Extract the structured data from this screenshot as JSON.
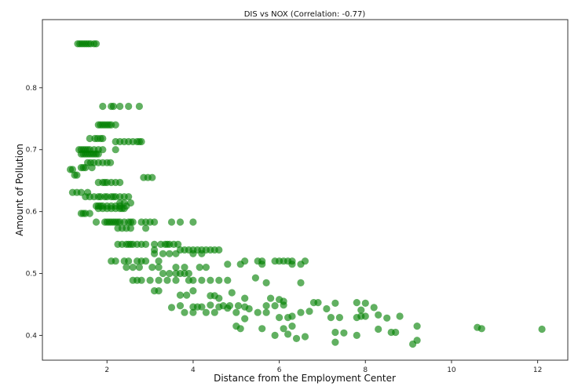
{
  "chart_data": {
    "type": "scatter",
    "title": "DIS vs NOX (Correlation: -0.77)",
    "xlabel": "Distance from the Employment Center",
    "ylabel": "Amount of Pollution",
    "xlim": [
      0.5,
      12.7
    ],
    "ylim": [
      0.36,
      0.91
    ],
    "xticks": [
      2,
      4,
      6,
      8,
      10,
      12
    ],
    "yticks": [
      0.4,
      0.5,
      0.6,
      0.7,
      0.8
    ],
    "grid": false,
    "marker_color": "#008000",
    "marker_alpha": 0.62,
    "points": [
      [
        1.32,
        0.871
      ],
      [
        1.37,
        0.871
      ],
      [
        1.42,
        0.871
      ],
      [
        1.47,
        0.871
      ],
      [
        1.52,
        0.871
      ],
      [
        1.57,
        0.871
      ],
      [
        1.62,
        0.871
      ],
      [
        1.7,
        0.871
      ],
      [
        1.75,
        0.871
      ],
      [
        1.9,
        0.77
      ],
      [
        2.1,
        0.77
      ],
      [
        2.15,
        0.77
      ],
      [
        2.3,
        0.77
      ],
      [
        2.5,
        0.77
      ],
      [
        2.75,
        0.77
      ],
      [
        1.8,
        0.74
      ],
      [
        1.85,
        0.74
      ],
      [
        1.9,
        0.74
      ],
      [
        1.95,
        0.74
      ],
      [
        2.0,
        0.74
      ],
      [
        2.05,
        0.74
      ],
      [
        2.1,
        0.74
      ],
      [
        2.2,
        0.74
      ],
      [
        1.6,
        0.718
      ],
      [
        1.72,
        0.718
      ],
      [
        1.78,
        0.718
      ],
      [
        1.85,
        0.718
      ],
      [
        1.9,
        0.718
      ],
      [
        2.2,
        0.713
      ],
      [
        2.3,
        0.713
      ],
      [
        2.4,
        0.713
      ],
      [
        2.5,
        0.713
      ],
      [
        2.6,
        0.713
      ],
      [
        2.7,
        0.713
      ],
      [
        2.75,
        0.713
      ],
      [
        2.8,
        0.713
      ],
      [
        1.35,
        0.7
      ],
      [
        1.4,
        0.7
      ],
      [
        1.45,
        0.7
      ],
      [
        1.5,
        0.7
      ],
      [
        1.55,
        0.7
      ],
      [
        1.6,
        0.7
      ],
      [
        1.7,
        0.7
      ],
      [
        1.8,
        0.7
      ],
      [
        1.9,
        0.7
      ],
      [
        2.2,
        0.7
      ],
      [
        1.4,
        0.693
      ],
      [
        1.45,
        0.693
      ],
      [
        1.5,
        0.693
      ],
      [
        1.55,
        0.693
      ],
      [
        1.6,
        0.693
      ],
      [
        1.65,
        0.693
      ],
      [
        1.7,
        0.693
      ],
      [
        1.75,
        0.693
      ],
      [
        1.8,
        0.693
      ],
      [
        1.55,
        0.679
      ],
      [
        1.62,
        0.679
      ],
      [
        1.7,
        0.679
      ],
      [
        1.8,
        0.679
      ],
      [
        1.9,
        0.679
      ],
      [
        2.0,
        0.679
      ],
      [
        2.08,
        0.679
      ],
      [
        1.4,
        0.671
      ],
      [
        1.45,
        0.671
      ],
      [
        1.5,
        0.671
      ],
      [
        1.65,
        0.671
      ],
      [
        1.15,
        0.668
      ],
      [
        1.2,
        0.668
      ],
      [
        1.25,
        0.659
      ],
      [
        1.3,
        0.659
      ],
      [
        2.85,
        0.655
      ],
      [
        2.95,
        0.655
      ],
      [
        3.05,
        0.655
      ],
      [
        1.8,
        0.647
      ],
      [
        1.9,
        0.647
      ],
      [
        1.95,
        0.647
      ],
      [
        2.0,
        0.647
      ],
      [
        2.1,
        0.647
      ],
      [
        2.2,
        0.647
      ],
      [
        2.3,
        0.647
      ],
      [
        1.2,
        0.631
      ],
      [
        1.3,
        0.631
      ],
      [
        1.4,
        0.631
      ],
      [
        1.55,
        0.631
      ],
      [
        1.5,
        0.624
      ],
      [
        1.6,
        0.624
      ],
      [
        1.7,
        0.624
      ],
      [
        1.8,
        0.624
      ],
      [
        1.85,
        0.624
      ],
      [
        1.95,
        0.624
      ],
      [
        2.0,
        0.624
      ],
      [
        2.1,
        0.624
      ],
      [
        2.15,
        0.624
      ],
      [
        2.2,
        0.624
      ],
      [
        2.3,
        0.624
      ],
      [
        2.4,
        0.624
      ],
      [
        2.5,
        0.624
      ],
      [
        2.3,
        0.614
      ],
      [
        2.4,
        0.614
      ],
      [
        2.55,
        0.614
      ],
      [
        1.75,
        0.609
      ],
      [
        1.8,
        0.609
      ],
      [
        1.85,
        0.609
      ],
      [
        1.9,
        0.609
      ],
      [
        2.0,
        0.609
      ],
      [
        2.1,
        0.609
      ],
      [
        2.2,
        0.609
      ],
      [
        2.3,
        0.609
      ],
      [
        2.45,
        0.609
      ],
      [
        1.8,
        0.605
      ],
      [
        1.9,
        0.605
      ],
      [
        2.0,
        0.605
      ],
      [
        2.1,
        0.605
      ],
      [
        2.2,
        0.605
      ],
      [
        2.3,
        0.605
      ],
      [
        2.35,
        0.605
      ],
      [
        2.4,
        0.605
      ],
      [
        1.4,
        0.597
      ],
      [
        1.45,
        0.597
      ],
      [
        1.5,
        0.597
      ],
      [
        1.6,
        0.597
      ],
      [
        1.75,
        0.583
      ],
      [
        1.95,
        0.583
      ],
      [
        2.0,
        0.583
      ],
      [
        2.05,
        0.583
      ],
      [
        2.1,
        0.583
      ],
      [
        2.15,
        0.583
      ],
      [
        2.2,
        0.583
      ],
      [
        2.25,
        0.583
      ],
      [
        2.3,
        0.583
      ],
      [
        2.4,
        0.583
      ],
      [
        2.5,
        0.583
      ],
      [
        2.55,
        0.583
      ],
      [
        2.6,
        0.583
      ],
      [
        2.8,
        0.583
      ],
      [
        2.9,
        0.583
      ],
      [
        3.0,
        0.583
      ],
      [
        3.1,
        0.583
      ],
      [
        3.5,
        0.583
      ],
      [
        3.7,
        0.583
      ],
      [
        4.0,
        0.583
      ],
      [
        2.25,
        0.573
      ],
      [
        2.35,
        0.573
      ],
      [
        2.45,
        0.573
      ],
      [
        2.55,
        0.573
      ],
      [
        2.9,
        0.573
      ],
      [
        2.25,
        0.547
      ],
      [
        2.35,
        0.547
      ],
      [
        2.45,
        0.547
      ],
      [
        2.5,
        0.547
      ],
      [
        2.55,
        0.547
      ],
      [
        2.6,
        0.547
      ],
      [
        2.7,
        0.547
      ],
      [
        2.8,
        0.547
      ],
      [
        2.9,
        0.547
      ],
      [
        3.1,
        0.547
      ],
      [
        3.25,
        0.547
      ],
      [
        3.35,
        0.547
      ],
      [
        3.4,
        0.547
      ],
      [
        3.45,
        0.547
      ],
      [
        3.55,
        0.547
      ],
      [
        3.65,
        0.547
      ],
      [
        3.1,
        0.538
      ],
      [
        3.7,
        0.538
      ],
      [
        3.8,
        0.538
      ],
      [
        3.9,
        0.538
      ],
      [
        4.0,
        0.538
      ],
      [
        4.1,
        0.538
      ],
      [
        4.2,
        0.538
      ],
      [
        4.3,
        0.538
      ],
      [
        4.4,
        0.538
      ],
      [
        4.5,
        0.538
      ],
      [
        4.6,
        0.538
      ],
      [
        3.1,
        0.532
      ],
      [
        3.3,
        0.532
      ],
      [
        3.45,
        0.532
      ],
      [
        3.6,
        0.532
      ],
      [
        4.0,
        0.532
      ],
      [
        4.2,
        0.532
      ],
      [
        5.2,
        0.52
      ],
      [
        5.5,
        0.52
      ],
      [
        5.6,
        0.52
      ],
      [
        5.9,
        0.52
      ],
      [
        6.0,
        0.52
      ],
      [
        6.1,
        0.52
      ],
      [
        6.2,
        0.52
      ],
      [
        6.3,
        0.52
      ],
      [
        6.6,
        0.52
      ],
      [
        2.1,
        0.52
      ],
      [
        2.2,
        0.52
      ],
      [
        2.4,
        0.52
      ],
      [
        2.5,
        0.52
      ],
      [
        2.7,
        0.52
      ],
      [
        2.8,
        0.52
      ],
      [
        2.9,
        0.52
      ],
      [
        3.2,
        0.52
      ],
      [
        4.8,
        0.515
      ],
      [
        5.1,
        0.515
      ],
      [
        5.6,
        0.515
      ],
      [
        6.3,
        0.515
      ],
      [
        6.5,
        0.515
      ],
      [
        2.45,
        0.51
      ],
      [
        2.6,
        0.51
      ],
      [
        2.75,
        0.51
      ],
      [
        3.05,
        0.51
      ],
      [
        3.2,
        0.51
      ],
      [
        3.6,
        0.51
      ],
      [
        3.8,
        0.51
      ],
      [
        4.15,
        0.51
      ],
      [
        4.3,
        0.51
      ],
      [
        3.3,
        0.5
      ],
      [
        3.45,
        0.5
      ],
      [
        3.6,
        0.5
      ],
      [
        3.7,
        0.5
      ],
      [
        3.8,
        0.5
      ],
      [
        3.9,
        0.5
      ],
      [
        2.6,
        0.489
      ],
      [
        2.7,
        0.489
      ],
      [
        2.8,
        0.489
      ],
      [
        3.0,
        0.489
      ],
      [
        3.2,
        0.489
      ],
      [
        3.4,
        0.489
      ],
      [
        3.6,
        0.489
      ],
      [
        3.9,
        0.489
      ],
      [
        4.0,
        0.489
      ],
      [
        4.2,
        0.489
      ],
      [
        4.4,
        0.489
      ],
      [
        4.6,
        0.489
      ],
      [
        4.8,
        0.489
      ],
      [
        5.45,
        0.493
      ],
      [
        5.7,
        0.485
      ],
      [
        6.5,
        0.485
      ],
      [
        3.1,
        0.472
      ],
      [
        3.2,
        0.472
      ],
      [
        3.7,
        0.465
      ],
      [
        3.85,
        0.465
      ],
      [
        4.0,
        0.472
      ],
      [
        4.4,
        0.464
      ],
      [
        4.5,
        0.464
      ],
      [
        4.9,
        0.469
      ],
      [
        5.2,
        0.46
      ],
      [
        3.5,
        0.445
      ],
      [
        3.7,
        0.448
      ],
      [
        4.0,
        0.446
      ],
      [
        4.1,
        0.446
      ],
      [
        4.2,
        0.446
      ],
      [
        4.4,
        0.449
      ],
      [
        4.6,
        0.446
      ],
      [
        4.7,
        0.448
      ],
      [
        4.85,
        0.448
      ],
      [
        5.05,
        0.448
      ],
      [
        5.2,
        0.446
      ],
      [
        5.7,
        0.448
      ],
      [
        5.9,
        0.448
      ],
      [
        6.1,
        0.449
      ],
      [
        6.3,
        0.431
      ],
      [
        6.5,
        0.437
      ],
      [
        6.7,
        0.439
      ],
      [
        6.8,
        0.453
      ],
      [
        6.9,
        0.453
      ],
      [
        7.1,
        0.443
      ],
      [
        7.3,
        0.452
      ],
      [
        3.8,
        0.437
      ],
      [
        4.0,
        0.437
      ],
      [
        4.3,
        0.437
      ],
      [
        4.5,
        0.437
      ],
      [
        5.0,
        0.437
      ],
      [
        5.2,
        0.427
      ],
      [
        5.5,
        0.437
      ],
      [
        5.7,
        0.437
      ],
      [
        6.0,
        0.429
      ],
      [
        6.2,
        0.429
      ],
      [
        7.2,
        0.429
      ],
      [
        7.4,
        0.429
      ],
      [
        7.8,
        0.429
      ],
      [
        7.9,
        0.431
      ],
      [
        8.0,
        0.431
      ],
      [
        8.3,
        0.433
      ],
      [
        8.5,
        0.428
      ],
      [
        8.8,
        0.431
      ],
      [
        9.2,
        0.415
      ],
      [
        5.0,
        0.415
      ],
      [
        5.1,
        0.411
      ],
      [
        5.6,
        0.411
      ],
      [
        6.1,
        0.411
      ],
      [
        6.3,
        0.415
      ],
      [
        7.3,
        0.405
      ],
      [
        7.5,
        0.404
      ],
      [
        7.8,
        0.4
      ],
      [
        8.3,
        0.41
      ],
      [
        8.6,
        0.405
      ],
      [
        9.2,
        0.392
      ],
      [
        9.1,
        0.386
      ],
      [
        5.9,
        0.4
      ],
      [
        6.2,
        0.402
      ],
      [
        6.4,
        0.395
      ],
      [
        6.6,
        0.398
      ],
      [
        7.3,
        0.389
      ],
      [
        10.6,
        0.413
      ],
      [
        10.7,
        0.411
      ],
      [
        12.1,
        0.41
      ],
      [
        7.9,
        0.441
      ],
      [
        8.2,
        0.445
      ],
      [
        8.7,
        0.405
      ],
      [
        8.0,
        0.452
      ],
      [
        7.8,
        0.453
      ],
      [
        6.0,
        0.458
      ],
      [
        6.1,
        0.455
      ],
      [
        5.8,
        0.46
      ],
      [
        5.3,
        0.443
      ],
      [
        4.8,
        0.444
      ],
      [
        4.6,
        0.46
      ]
    ]
  }
}
